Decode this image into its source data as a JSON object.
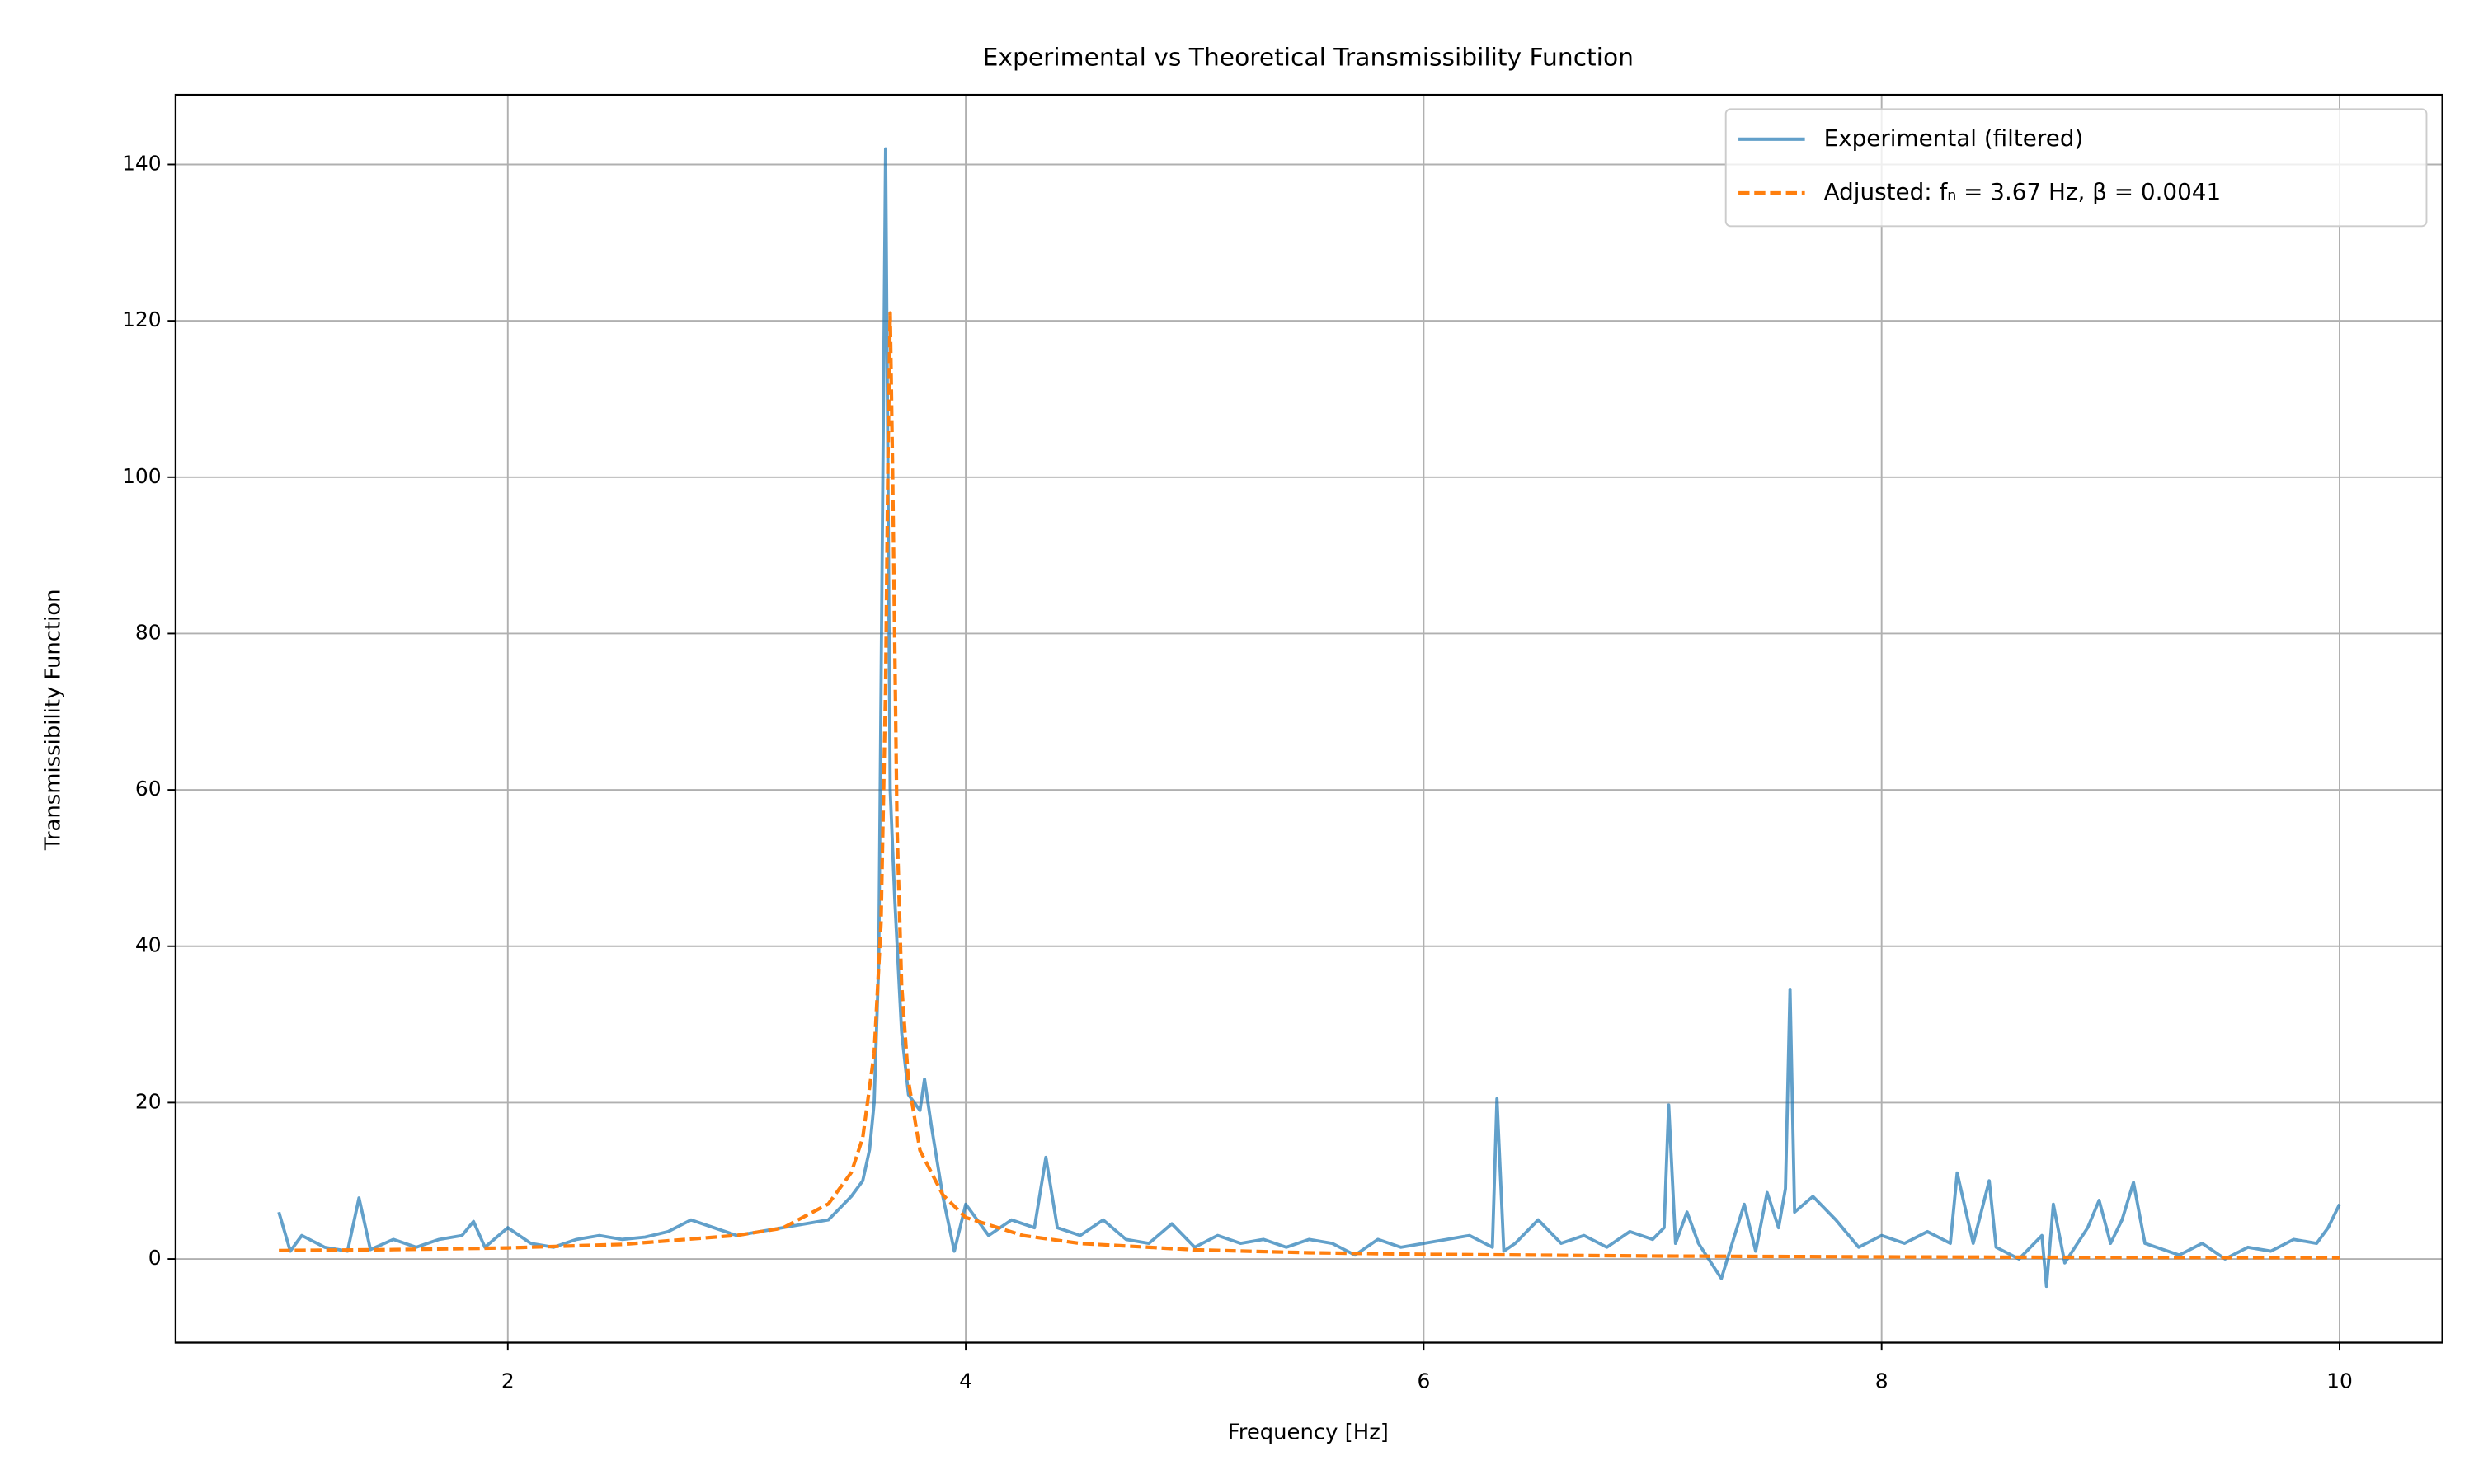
{
  "chart_data": {
    "type": "line",
    "title": "Experimental vs Theoretical Transmissibility Function",
    "x_label": "Frequency [Hz]",
    "y_label": "Transmissibility Function",
    "xlim": [
      0.549,
      10.449
    ],
    "ylim": [
      -10.7,
      148.9
    ],
    "xticks": [
      2,
      4,
      6,
      8,
      10
    ],
    "yticks": [
      0,
      20,
      40,
      60,
      80,
      100,
      120,
      140
    ],
    "grid": true,
    "legend": "upper right",
    "series": [
      {
        "name": "Experimental (filtered)",
        "color": "#1f77b4",
        "style": "solid",
        "x": [
          1.0,
          1.05,
          1.1,
          1.2,
          1.3,
          1.35,
          1.4,
          1.5,
          1.6,
          1.7,
          1.8,
          1.85,
          1.9,
          2.0,
          2.1,
          2.2,
          2.3,
          2.4,
          2.5,
          2.6,
          2.7,
          2.8,
          2.9,
          3.0,
          3.1,
          3.2,
          3.3,
          3.4,
          3.5,
          3.55,
          3.58,
          3.6,
          3.62,
          3.65,
          3.67,
          3.69,
          3.72,
          3.75,
          3.8,
          3.82,
          3.85,
          3.9,
          3.95,
          4.0,
          4.05,
          4.1,
          4.2,
          4.3,
          4.35,
          4.4,
          4.5,
          4.6,
          4.7,
          4.8,
          4.9,
          5.0,
          5.1,
          5.2,
          5.3,
          5.4,
          5.5,
          5.6,
          5.7,
          5.8,
          5.9,
          6.0,
          6.1,
          6.2,
          6.3,
          6.32,
          6.35,
          6.4,
          6.5,
          6.6,
          6.7,
          6.8,
          6.9,
          7.0,
          7.05,
          7.07,
          7.1,
          7.15,
          7.2,
          7.3,
          7.4,
          7.45,
          7.5,
          7.55,
          7.58,
          7.6,
          7.62,
          7.7,
          7.8,
          7.9,
          8.0,
          8.1,
          8.2,
          8.3,
          8.33,
          8.4,
          8.47,
          8.5,
          8.6,
          8.7,
          8.72,
          8.75,
          8.8,
          8.9,
          8.95,
          9.0,
          9.05,
          9.1,
          9.15,
          9.2,
          9.3,
          9.4,
          9.5,
          9.6,
          9.7,
          9.8,
          9.9,
          9.95,
          10.0
        ],
        "values": [
          6,
          1,
          3,
          1.5,
          1,
          7.8,
          1.2,
          2.5,
          1.5,
          2.5,
          3,
          4.8,
          1.5,
          4,
          2,
          1.5,
          2.5,
          3,
          2.5,
          2.8,
          3.5,
          5,
          4,
          3,
          3.5,
          4,
          4.5,
          5,
          8,
          10,
          14,
          20,
          38,
          142,
          60,
          46,
          29,
          21,
          19,
          23,
          17,
          8,
          1,
          7,
          5,
          3,
          5,
          4,
          13,
          4,
          3,
          5,
          2.5,
          2,
          4.5,
          1.5,
          3,
          2,
          2.5,
          1.5,
          2.5,
          2,
          0.5,
          2.5,
          1.5,
          2,
          2.5,
          3,
          1.5,
          20.5,
          1,
          2,
          5,
          2,
          3,
          1.5,
          3.5,
          2.5,
          4,
          19.7,
          2,
          6,
          2,
          -2.5,
          7,
          1,
          8.5,
          4,
          9,
          34.5,
          6,
          8,
          5,
          1.5,
          3,
          2,
          3.5,
          2,
          11,
          2,
          10,
          1.5,
          0,
          3,
          -3.5,
          7,
          -0.5,
          4,
          7.5,
          2,
          5,
          9.8,
          2,
          1.5,
          0.5,
          2,
          0,
          1.5,
          1,
          2.5,
          2,
          4,
          7
        ]
      },
      {
        "name": "Adjusted: fₙ = 3.67 Hz, β = 0.0041",
        "color": "#ff7f0e",
        "style": "dashed",
        "x": [
          1,
          1.5,
          2,
          2.5,
          3,
          3.2,
          3.4,
          3.5,
          3.55,
          3.6,
          3.63,
          3.65,
          3.66,
          3.67,
          3.68,
          3.7,
          3.72,
          3.75,
          3.8,
          3.9,
          4,
          4.25,
          4.5,
          5,
          5.5,
          6,
          7,
          8,
          9,
          10
        ],
        "values": [
          1.08,
          1.2,
          1.42,
          1.87,
          3.01,
          3.95,
          7.05,
          11.05,
          15.5,
          26.3,
          43,
          73,
          102,
          121,
          102,
          55,
          35,
          22.7,
          13.9,
          8.2,
          5.3,
          3.0,
          1.99,
          1.17,
          0.8,
          0.6,
          0.38,
          0.27,
          0.2,
          0.16
        ]
      }
    ]
  }
}
